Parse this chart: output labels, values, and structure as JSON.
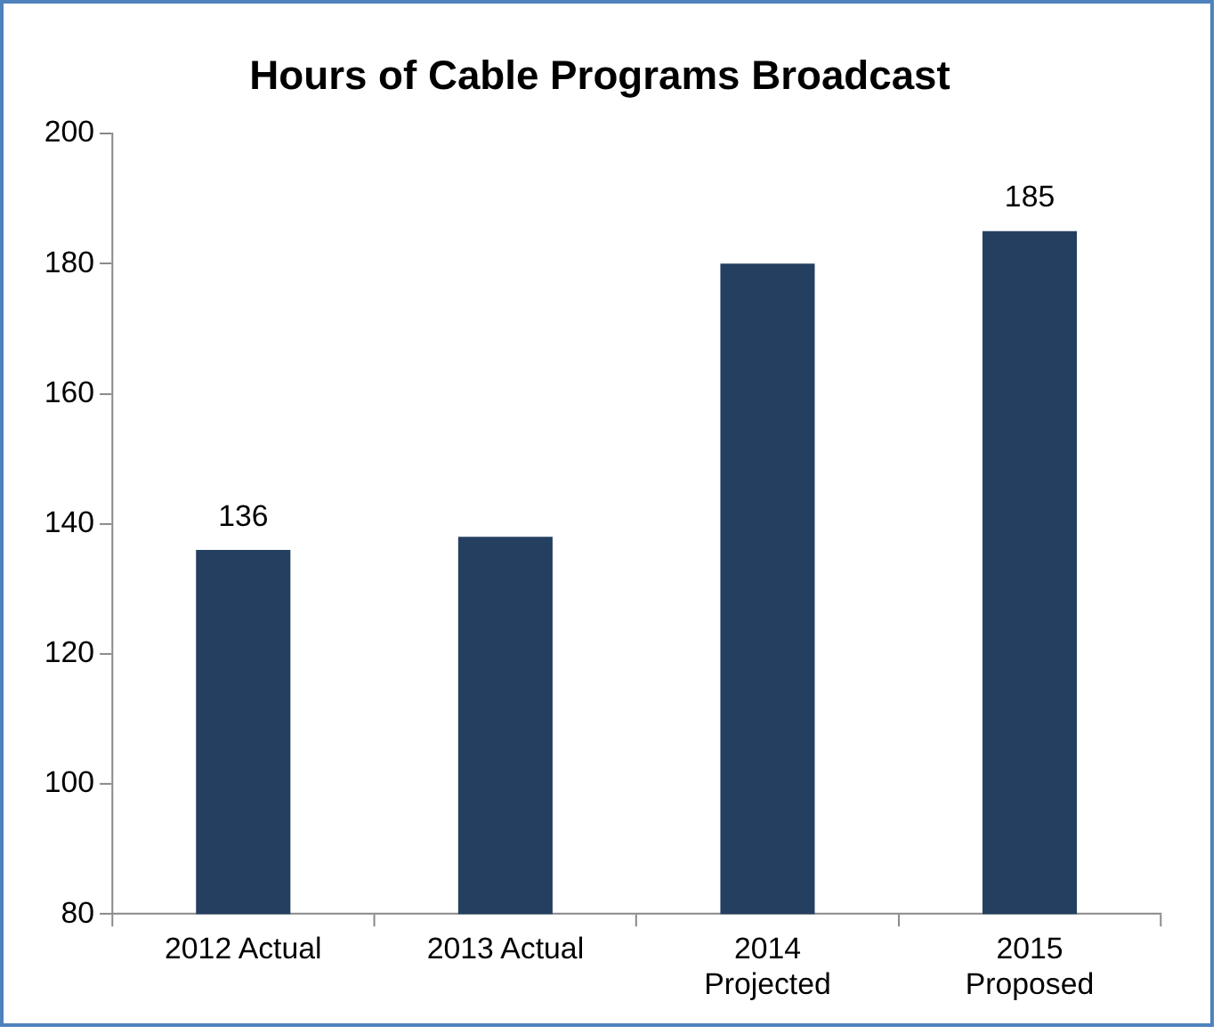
{
  "chart_data": {
    "type": "bar",
    "title": "Hours of Cable Programs Broadcast",
    "categories": [
      "2012 Actual",
      "2013 Actual",
      "2014 Projected",
      "2015 Proposed"
    ],
    "values": [
      136,
      138,
      180,
      185
    ],
    "value_labels": [
      "136",
      null,
      null,
      "185"
    ],
    "color": "#243f60",
    "ylim": [
      80,
      200
    ],
    "yticks": [
      80,
      100,
      120,
      140,
      160,
      180,
      200
    ],
    "grid": false,
    "legend": false
  }
}
